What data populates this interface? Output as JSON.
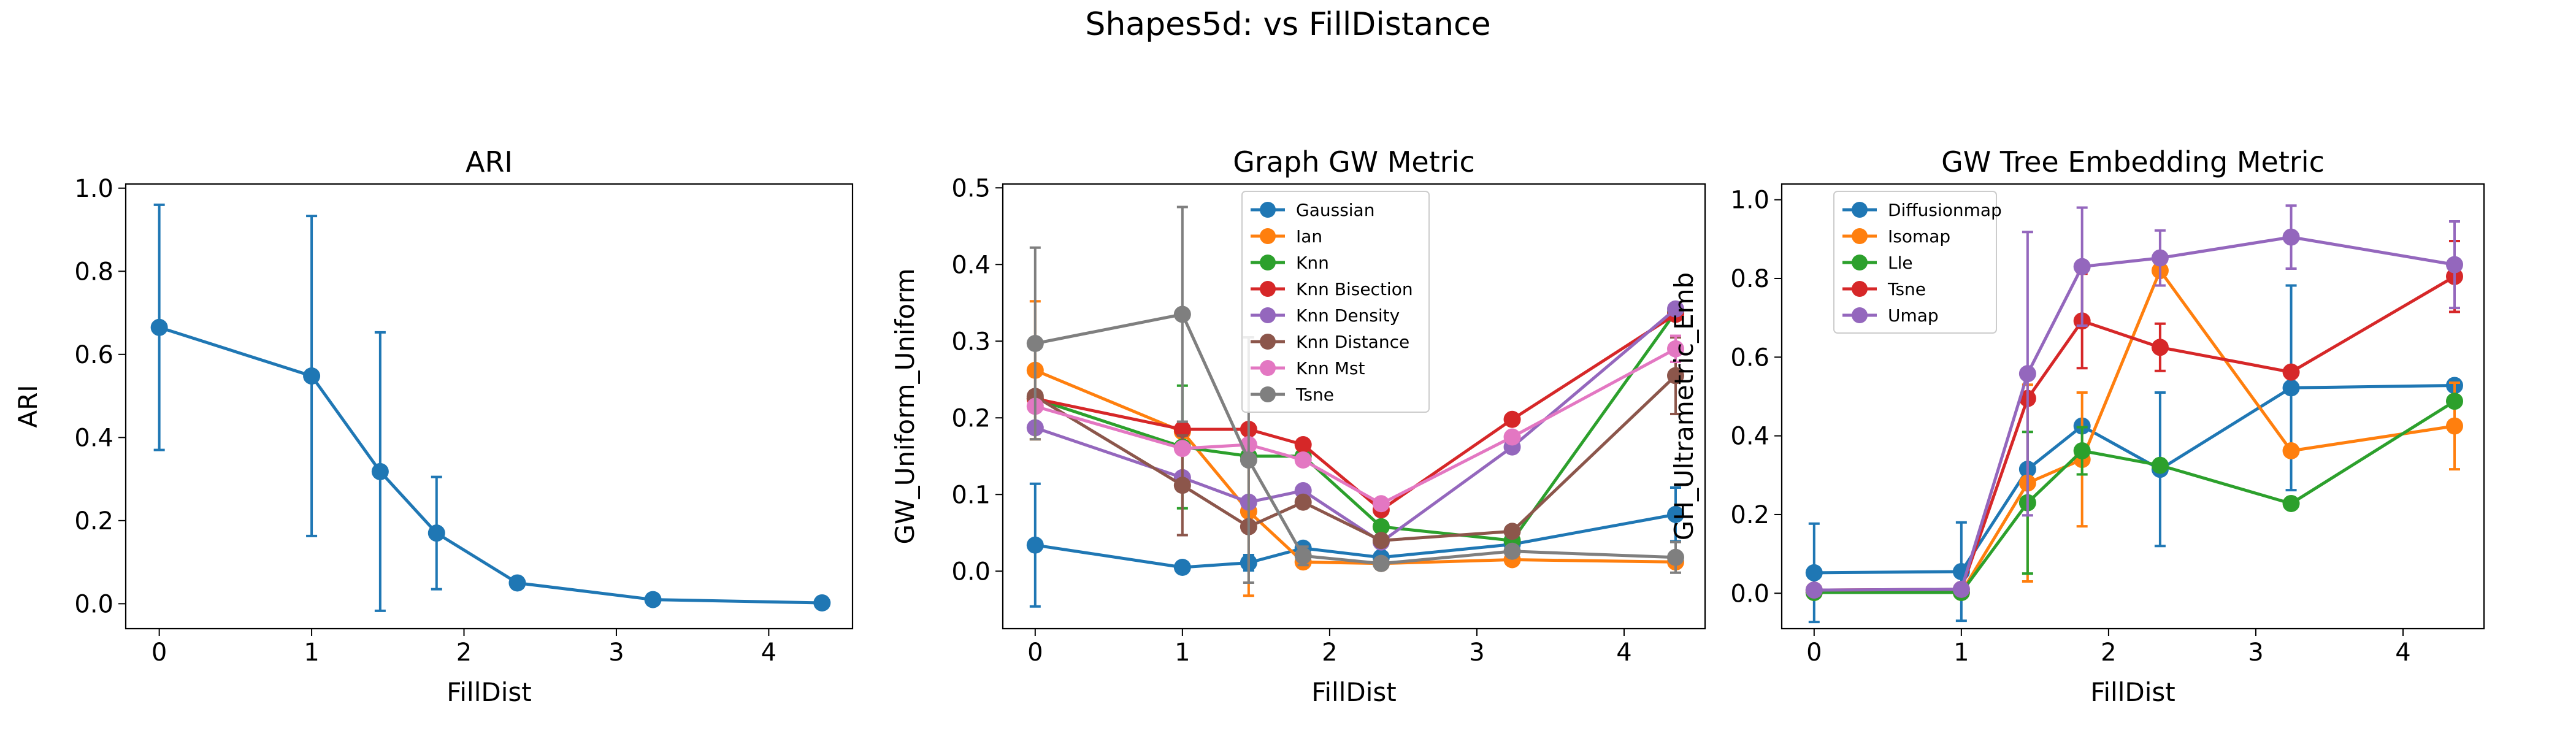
{
  "figure": {
    "suptitle": "Shapes5d: vs FillDistance"
  },
  "colors": {
    "c0": "#1f77b4",
    "c1": "#ff7f0e",
    "c2": "#2ca02c",
    "c3": "#d62728",
    "c4": "#9467bd",
    "c5": "#8c564b",
    "c6": "#e377c2",
    "c7": "#7f7f7f"
  },
  "chart_data": [
    {
      "type": "line",
      "title": "ARI",
      "xlabel": "FillDist",
      "ylabel": "ARI",
      "xlim": [
        -0.22,
        4.55
      ],
      "ylim": [
        -0.06,
        1.01
      ],
      "xticks": [
        0,
        1,
        2,
        3,
        4
      ],
      "yticks": [
        0.0,
        0.2,
        0.4,
        0.6,
        0.8,
        1.0
      ],
      "ytick_labels": [
        "0.0",
        "0.2",
        "0.4",
        "0.6",
        "0.8",
        "1.0"
      ],
      "x": [
        0,
        1.0,
        1.45,
        1.82,
        2.35,
        3.24,
        4.35
      ],
      "legend": null,
      "series": [
        {
          "color": "c0",
          "values": [
            0.665,
            0.548,
            0.318,
            0.17,
            0.05,
            0.01,
            0.002
          ],
          "errors": [
            0.295,
            0.385,
            0.335,
            0.135,
            0.0,
            0.0,
            0.0
          ]
        }
      ]
    },
    {
      "type": "line",
      "title": "Graph GW Metric",
      "xlabel": "FillDist",
      "ylabel": "GW_Uniform_Uniform",
      "xlim": [
        -0.22,
        4.55
      ],
      "ylim": [
        -0.075,
        0.505
      ],
      "xticks": [
        0,
        1,
        2,
        3,
        4
      ],
      "yticks": [
        0.0,
        0.1,
        0.2,
        0.3,
        0.4,
        0.5
      ],
      "ytick_labels": [
        "0.0",
        "0.1",
        "0.2",
        "0.3",
        "0.4",
        "0.5"
      ],
      "x": [
        0,
        1.0,
        1.45,
        1.82,
        2.35,
        3.24,
        4.35
      ],
      "legend": "top-center",
      "series": [
        {
          "name": "Gaussian",
          "color": "c0",
          "values": [
            0.034,
            0.005,
            0.011,
            0.03,
            0.018,
            0.035,
            0.074
          ],
          "errors": [
            0.08,
            0.0,
            0.01,
            0.0,
            0.0,
            0.0,
            0.035
          ]
        },
        {
          "name": "Ian",
          "color": "c1",
          "values": [
            0.262,
            0.182,
            0.078,
            0.012,
            0.01,
            0.015,
            0.012
          ],
          "errors": [
            0.09,
            0.0,
            0.11,
            0.0,
            0.0,
            0.0,
            0.005
          ]
        },
        {
          "name": "Knn",
          "color": "c2",
          "values": [
            0.225,
            0.162,
            0.15,
            0.15,
            0.058,
            0.04,
            0.338
          ],
          "errors": [
            0.0,
            0.08,
            0.0,
            0.0,
            0.0,
            0.0,
            0.0
          ]
        },
        {
          "name": "Knn Bisection",
          "color": "c3",
          "values": [
            0.225,
            0.185,
            0.185,
            0.165,
            0.08,
            0.198,
            0.335
          ],
          "errors": [
            0.0,
            0.0,
            0.0,
            0.0,
            0.0,
            0.0,
            0.0
          ]
        },
        {
          "name": "Knn Density",
          "color": "c4",
          "values": [
            0.187,
            0.122,
            0.09,
            0.105,
            0.038,
            0.162,
            0.342
          ],
          "errors": [
            0.0,
            0.0,
            0.0,
            0.0,
            0.0,
            0.0,
            0.0
          ]
        },
        {
          "name": "Knn Distance",
          "color": "c5",
          "values": [
            0.228,
            0.112,
            0.058,
            0.09,
            0.04,
            0.052,
            0.255
          ],
          "errors": [
            0.0,
            0.065,
            0.0,
            0.0,
            0.0,
            0.0,
            0.05
          ]
        },
        {
          "name": "Knn Mst",
          "color": "c6",
          "values": [
            0.215,
            0.16,
            0.165,
            0.145,
            0.088,
            0.175,
            0.29
          ],
          "errors": [
            0.0,
            0.0,
            0.0,
            0.0,
            0.0,
            0.0,
            0.017
          ]
        },
        {
          "name": "Tsne",
          "color": "c7",
          "values": [
            0.297,
            0.335,
            0.145,
            0.02,
            0.01,
            0.026,
            0.018
          ],
          "errors": [
            0.125,
            0.14,
            0.16,
            0.012,
            0.0,
            0.0,
            0.02
          ]
        }
      ]
    },
    {
      "type": "line",
      "title": "GW Tree Embedding Metric",
      "xlabel": "FillDist",
      "ylabel": "GH_Ultrametric_Emb",
      "xlim": [
        -0.22,
        4.55
      ],
      "ylim": [
        -0.09,
        1.04
      ],
      "xticks": [
        0,
        1,
        2,
        3,
        4
      ],
      "yticks": [
        0.0,
        0.2,
        0.4,
        0.6,
        0.8,
        1.0
      ],
      "ytick_labels": [
        "0.0",
        "0.2",
        "0.4",
        "0.6",
        "0.8",
        "1.0"
      ],
      "x": [
        0,
        1.0,
        1.45,
        1.82,
        2.35,
        3.24,
        4.35
      ],
      "legend": "top-left",
      "series": [
        {
          "name": "Diffusionmap",
          "color": "c0",
          "values": [
            0.052,
            0.055,
            0.315,
            0.425,
            0.315,
            0.522,
            0.528
          ],
          "errors": [
            0.125,
            0.125,
            0.0,
            0.0,
            0.195,
            0.26,
            0.0
          ]
        },
        {
          "name": "Isomap",
          "color": "c1",
          "values": [
            0.002,
            0.002,
            0.28,
            0.34,
            0.82,
            0.362,
            0.425
          ],
          "errors": [
            0.0,
            0.0,
            0.25,
            0.17,
            0.0,
            0.0,
            0.11
          ]
        },
        {
          "name": "Lle",
          "color": "c2",
          "values": [
            0.002,
            0.002,
            0.23,
            0.362,
            0.325,
            0.228,
            0.488
          ],
          "errors": [
            0.0,
            0.0,
            0.18,
            0.06,
            0.0,
            0.0,
            0.0
          ]
        },
        {
          "name": "Tsne",
          "color": "c3",
          "values": [
            0.008,
            0.01,
            0.495,
            0.692,
            0.625,
            0.562,
            0.805
          ],
          "errors": [
            0.0,
            0.0,
            0.0,
            0.12,
            0.06,
            0.0,
            0.09
          ]
        },
        {
          "name": "Umap",
          "color": "c4",
          "values": [
            0.008,
            0.01,
            0.558,
            0.83,
            0.852,
            0.905,
            0.835
          ],
          "errors": [
            0.0,
            0.0,
            0.36,
            0.15,
            0.07,
            0.08,
            0.11
          ]
        }
      ]
    }
  ]
}
